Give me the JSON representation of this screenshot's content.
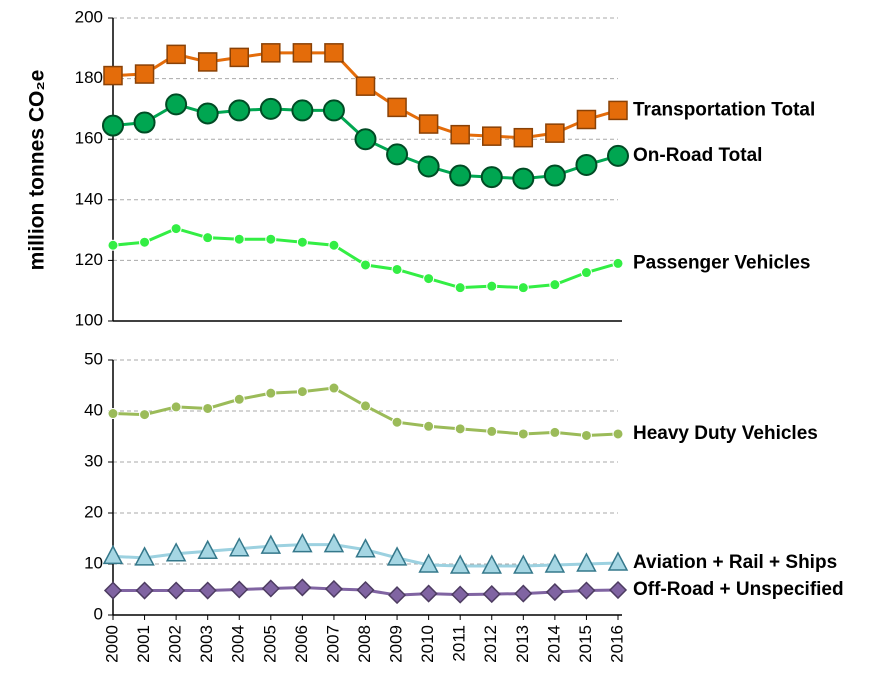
{
  "chart_data": [
    {
      "type": "line",
      "y_label": "million tonnes CO₂e",
      "ylim": [
        100,
        200
      ],
      "yticks": [
        100,
        120,
        140,
        160,
        180,
        200
      ],
      "grid": true,
      "series": [
        {
          "name": "Transportation Total",
          "color": "#e46c0a",
          "marker": "square",
          "values": [
            181,
            181.5,
            188,
            185.5,
            187,
            188.5,
            188.5,
            188.5,
            177.5,
            170.5,
            165,
            161.5,
            161,
            160.5,
            162,
            166.5,
            169.5
          ]
        },
        {
          "name": "On-Road Total",
          "color": "#00a651",
          "marker": "big-circle",
          "values": [
            164.5,
            165.5,
            171.5,
            168.5,
            169.5,
            170,
            169.5,
            169.5,
            160,
            155,
            151,
            148,
            147.5,
            147,
            148,
            151.5,
            154.5
          ]
        },
        {
          "name": "Passenger Vehicles",
          "color": "#33ee44",
          "marker": "circle",
          "values": [
            125,
            126,
            130.5,
            127.5,
            127,
            127,
            126,
            125,
            118.5,
            117,
            114,
            111,
            111.5,
            111,
            112,
            116,
            119
          ]
        }
      ]
    },
    {
      "type": "line",
      "categories": [
        "2000",
        "2001",
        "2002",
        "2003",
        "2004",
        "2005",
        "2006",
        "2007",
        "2008",
        "2009",
        "2010",
        "2011",
        "2012",
        "2013",
        "2014",
        "2015",
        "2016"
      ],
      "ylim": [
        0,
        50
      ],
      "yticks": [
        0,
        10,
        20,
        30,
        40,
        50
      ],
      "grid": true,
      "series": [
        {
          "name": "Heavy Duty Vehicles",
          "color": "#9bbb59",
          "marker": "circle",
          "values": [
            39.5,
            39.3,
            40.8,
            40.5,
            42.3,
            43.5,
            43.8,
            44.5,
            41,
            37.8,
            37,
            36.5,
            36,
            35.5,
            35.8,
            35.2,
            35.5
          ]
        },
        {
          "name": "Aviation + Rail + Ships",
          "color": "#4bacc6",
          "marker": "triangle",
          "values": [
            11.5,
            11.2,
            12,
            12.5,
            13,
            13.5,
            13.8,
            13.8,
            12.8,
            11.2,
            9.8,
            9.6,
            9.6,
            9.6,
            9.8,
            10,
            10.2
          ]
        },
        {
          "name": "Off-Road + Unspecified",
          "color": "#8064a2",
          "marker": "diamond",
          "values": [
            4.8,
            4.8,
            4.8,
            4.8,
            5,
            5.2,
            5.4,
            5.1,
            4.9,
            3.9,
            4.2,
            4,
            4.1,
            4.2,
            4.5,
            4.8,
            4.9
          ]
        }
      ]
    }
  ]
}
